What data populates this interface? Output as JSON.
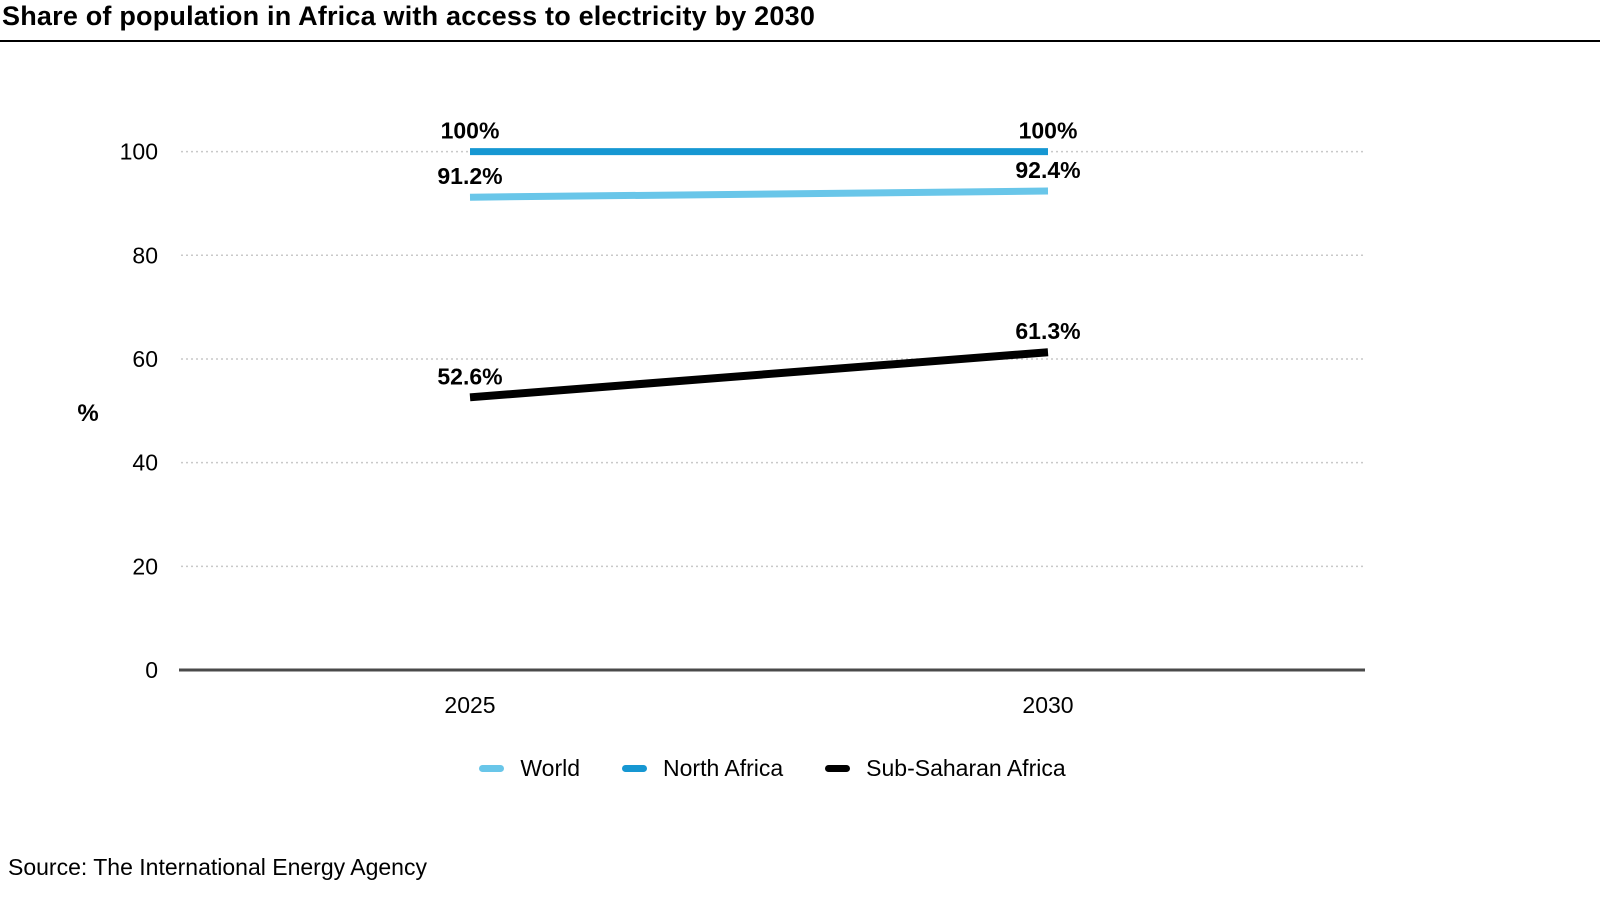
{
  "title": "Share of population in Africa with access to electricity by 2030",
  "source": "Source: The International Energy Agency",
  "chart_data": {
    "type": "line",
    "title": "Share of population in Africa with access to electricity by 2030",
    "categories": [
      "2025",
      "2030"
    ],
    "xlabel": "",
    "ylabel": "%",
    "ylim": [
      0,
      100
    ],
    "yticks": [
      0,
      20,
      40,
      60,
      80,
      100
    ],
    "grid": "horizontal dashed gridlines",
    "legend_position": "bottom center",
    "series": [
      {
        "name": "World",
        "color": "#69C6E9",
        "values": [
          91.2,
          92.4
        ],
        "point_labels": [
          "91.2%",
          "92.4%"
        ]
      },
      {
        "name": "North Africa",
        "color": "#1697D2",
        "values": [
          100,
          100
        ],
        "point_labels": [
          "100%",
          "100%"
        ]
      },
      {
        "name": "Sub-Saharan Africa",
        "color": "#000000",
        "values": [
          52.6,
          61.3
        ],
        "point_labels": [
          "52.6%",
          "61.3%"
        ]
      }
    ],
    "source": "Source: The International Energy Agency"
  },
  "styles": {
    "grid_color": "#C9C9C9",
    "axis_color": "#4A4A4A",
    "text_color": "#000000"
  }
}
